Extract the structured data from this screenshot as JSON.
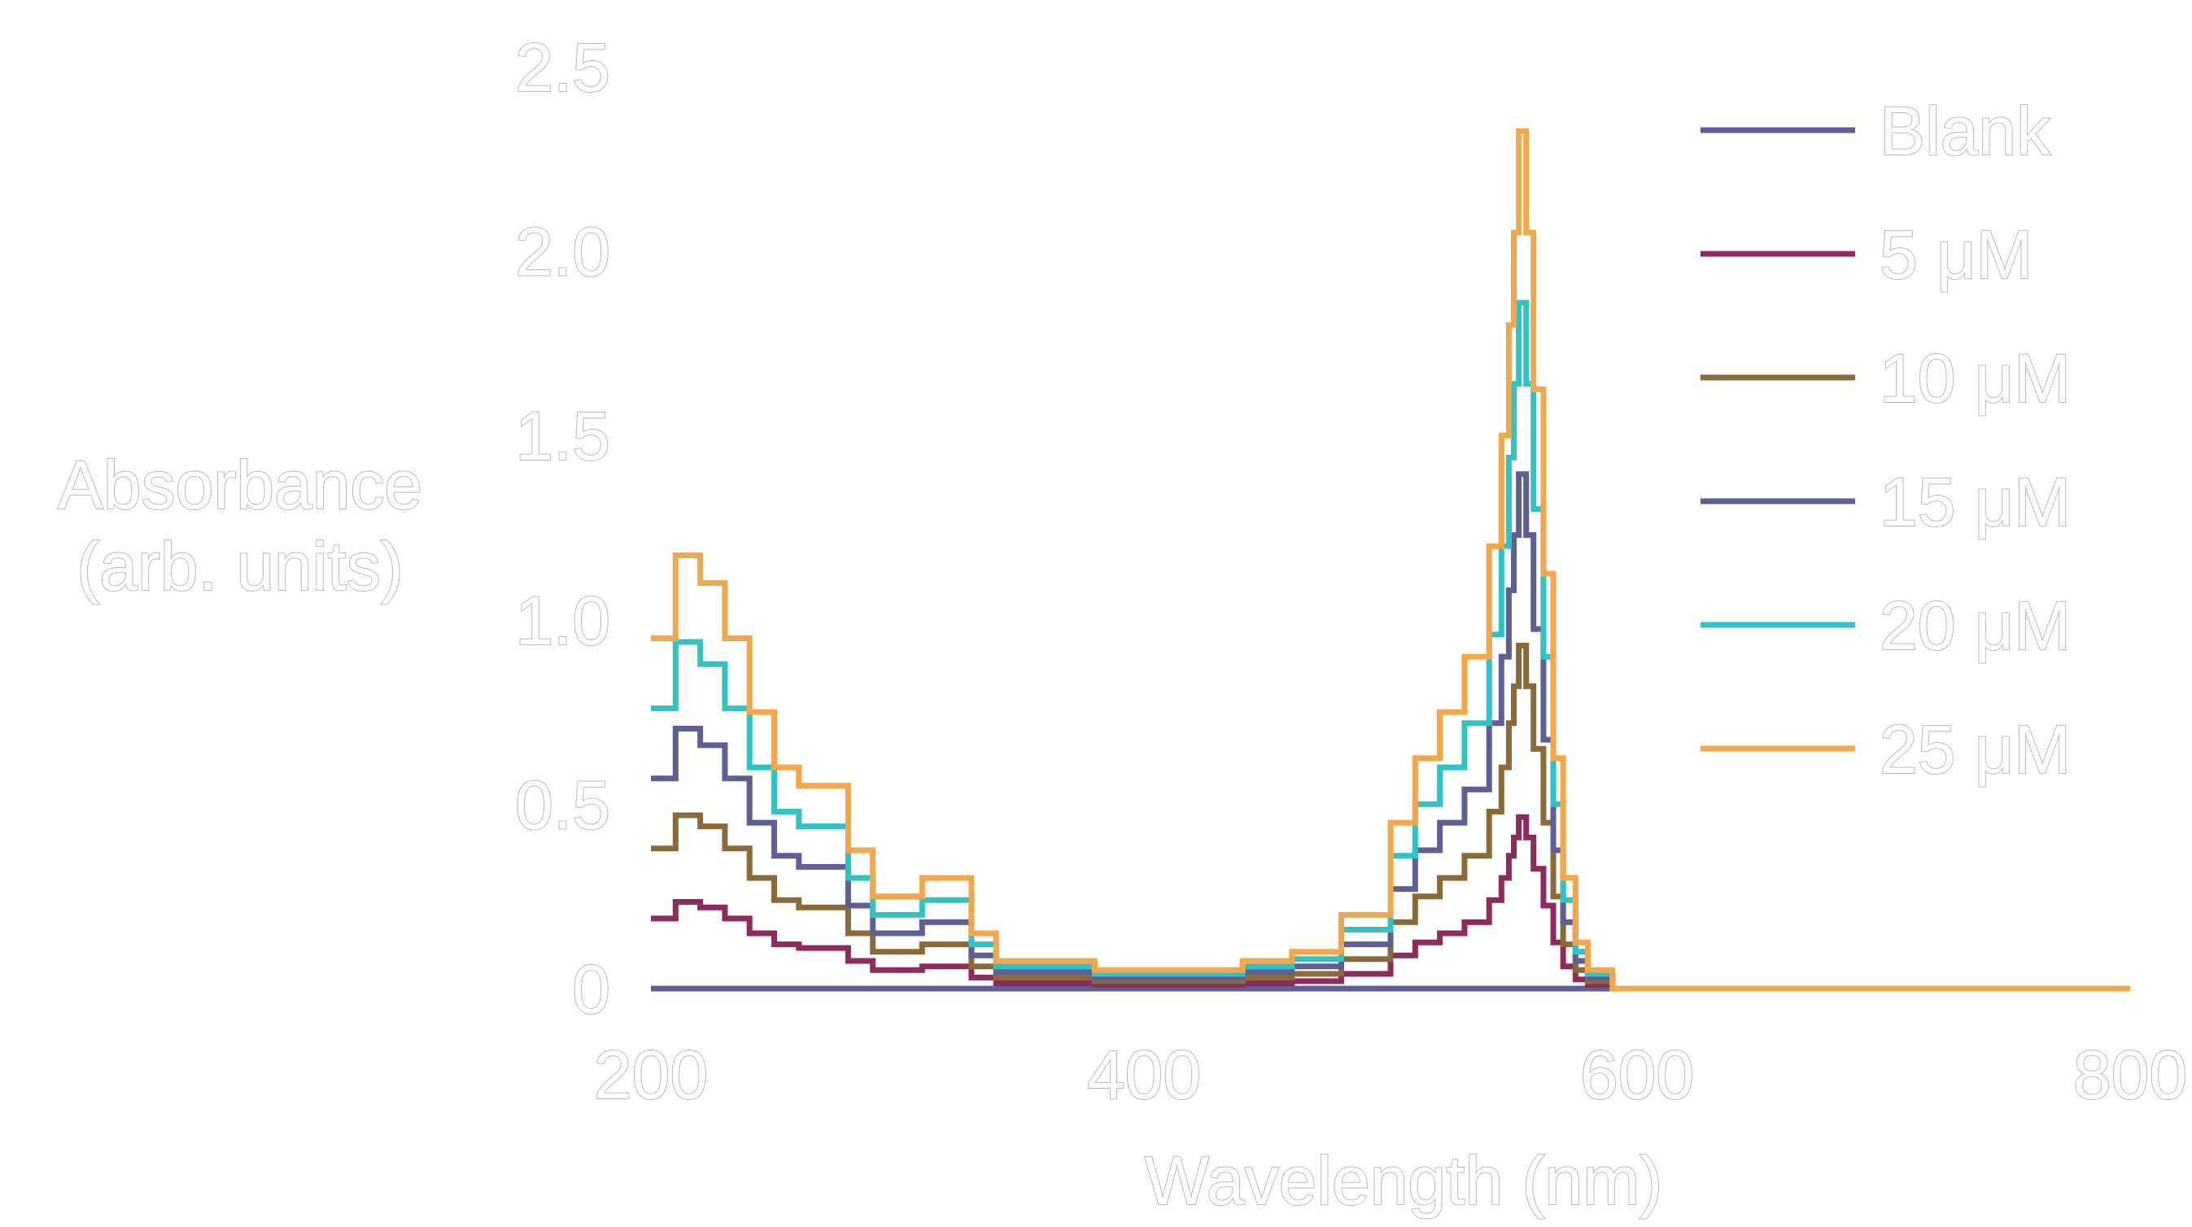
{
  "chart_data": {
    "type": "line",
    "title": "",
    "xlabel": "Wavelength (nm)",
    "ylabel_lines": [
      "Absorbance",
      "(arb. units)"
    ],
    "xlim": [
      200,
      800
    ],
    "ylim": [
      0,
      2.5
    ],
    "xticks": [
      200,
      400,
      600,
      800
    ],
    "xtick_labels": [
      "200",
      "400",
      "600",
      "800"
    ],
    "yticks": [
      0,
      0.5,
      1.0,
      1.5,
      2.0,
      2.5
    ],
    "ytick_labels": [
      "0",
      "0.5",
      "1.0",
      "1.5",
      "2.0",
      "2.5"
    ],
    "grid": false,
    "legend_position": "top-right",
    "step_plot": true,
    "x": [
      200,
      210,
      220,
      230,
      240,
      250,
      260,
      270,
      280,
      290,
      300,
      310,
      320,
      330,
      340,
      350,
      360,
      380,
      400,
      420,
      440,
      460,
      480,
      500,
      510,
      520,
      530,
      540,
      545,
      548,
      550,
      552,
      555,
      558,
      562,
      566,
      570,
      575,
      580,
      590,
      600,
      650,
      700,
      800
    ],
    "base_profile": [
      0.38,
      0.47,
      0.44,
      0.38,
      0.3,
      0.24,
      0.22,
      0.22,
      0.15,
      0.1,
      0.1,
      0.12,
      0.12,
      0.06,
      0.03,
      0.03,
      0.03,
      0.02,
      0.02,
      0.02,
      0.03,
      0.04,
      0.08,
      0.18,
      0.25,
      0.3,
      0.36,
      0.48,
      0.6,
      0.72,
      0.82,
      0.93,
      0.82,
      0.65,
      0.45,
      0.25,
      0.12,
      0.05,
      0.02,
      0.0,
      0.0,
      0.0,
      0.0,
      0.0
    ],
    "series": [
      {
        "name": "Blank",
        "scale": 0.0,
        "color": "#5f5f93"
      },
      {
        "name": "5 μM",
        "scale": 0.5,
        "color": "#8e2a5c"
      },
      {
        "name": "10 μM",
        "scale": 1.0,
        "color": "#8b6a3a"
      },
      {
        "name": "15 μM",
        "scale": 1.5,
        "color": "#5f5f93"
      },
      {
        "name": "20 μM",
        "scale": 2.0,
        "color": "#30c3c3"
      },
      {
        "name": "25 μM",
        "scale": 2.5,
        "color": "#f3a64a"
      }
    ]
  }
}
